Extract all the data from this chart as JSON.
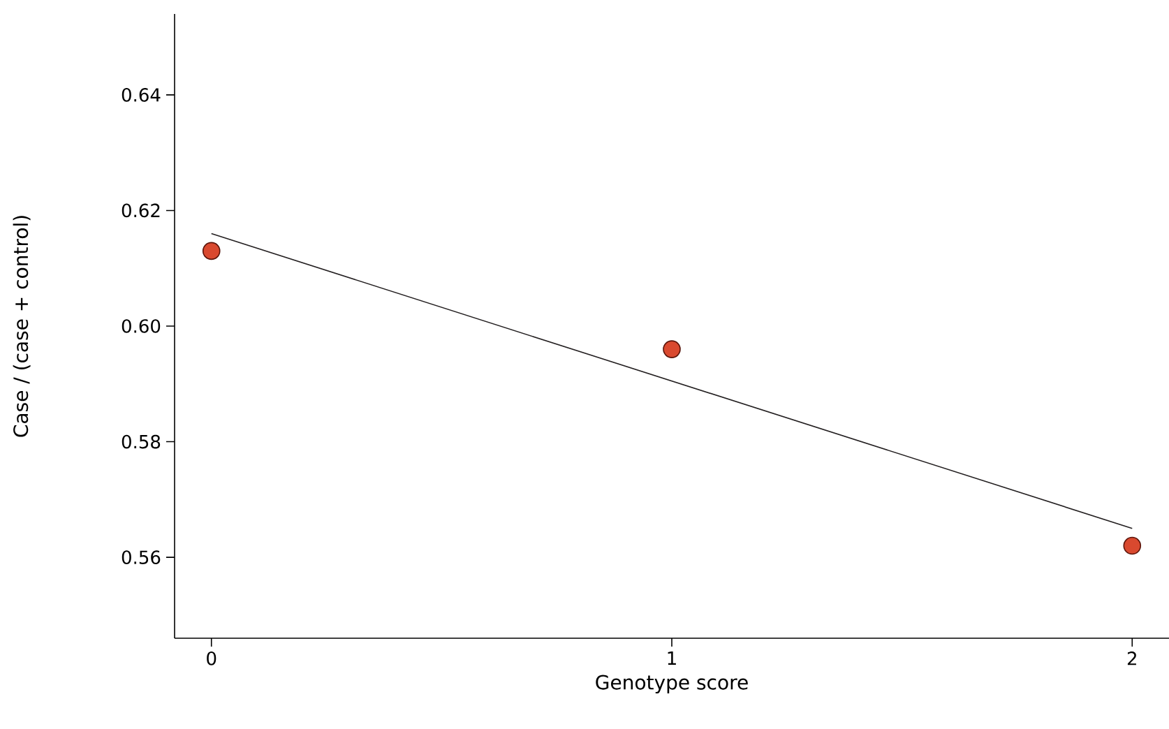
{
  "chart_data": {
    "type": "scatter",
    "xlabel": "Genotype score",
    "ylabel": "Case / (case + control)",
    "xlim": [
      -0.08,
      2.08
    ],
    "ylim": [
      0.546,
      0.654
    ],
    "xticks": [
      0,
      1,
      2
    ],
    "yticks": [
      0.56,
      0.58,
      {
        "value": 0.6,
        "label": "0.60"
      },
      0.62,
      0.64
    ],
    "grid": false,
    "series": [
      {
        "x": [
          0,
          1,
          2
        ],
        "values": [
          0.613,
          0.596,
          0.562
        ],
        "color": "#d9492f",
        "marker": "circle"
      },
      {
        "type": "line",
        "x": [
          0,
          2
        ],
        "values": [
          0.616,
          0.565
        ],
        "color": "#231f20",
        "marker": "none",
        "line_style": "solid"
      }
    ]
  }
}
